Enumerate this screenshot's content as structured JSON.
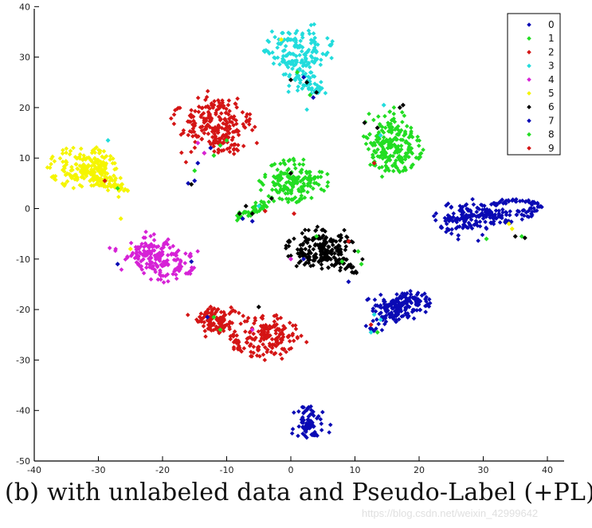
{
  "caption": "(b) with unlabeled data and Pseudo-Label (+PL)",
  "watermark": "https://blog.csdn.net/weixin_42999642",
  "chart_data": {
    "type": "scatter",
    "title": "",
    "xlabel": "",
    "ylabel": "",
    "xlim": [
      -40,
      43
    ],
    "ylim": [
      -50,
      40
    ],
    "xticks": [
      -40,
      -30,
      -20,
      -10,
      0,
      10,
      20,
      30,
      40
    ],
    "yticks": [
      -50,
      -40,
      -30,
      -20,
      -10,
      0,
      10,
      20,
      30,
      40
    ],
    "grid": false,
    "legend_position": "upper right",
    "legend": [
      {
        "label": "0",
        "color": "#0a0ab4"
      },
      {
        "label": "1",
        "color": "#22dd22"
      },
      {
        "label": "2",
        "color": "#d41515"
      },
      {
        "label": "3",
        "color": "#22dcdc"
      },
      {
        "label": "4",
        "color": "#d622d6"
      },
      {
        "label": "5",
        "color": "#f5f500"
      },
      {
        "label": "6",
        "color": "#000000"
      },
      {
        "label": "7",
        "color": "#0a0ab4"
      },
      {
        "label": "8",
        "color": "#22dd22"
      },
      {
        "label": "9",
        "color": "#d41515"
      }
    ],
    "clusters": [
      {
        "class": "3",
        "color": "#22dcdc",
        "ring": [
          1,
          32,
          3.0,
          1.6
        ],
        "center": [
          1.5,
          29
        ],
        "spread": [
          3.5,
          4.5
        ],
        "n": 170,
        "tail": [
          [
            0,
            27
          ],
          [
            5,
            23
          ]
        ],
        "tail_n": 40
      },
      {
        "class": "2",
        "color": "#d41515",
        "ring": [
          -12.5,
          18,
          3.2,
          2.2
        ],
        "center": [
          -12,
          16
        ],
        "spread": [
          4.0,
          4.5
        ],
        "n": 210,
        "tail": [
          [
            -12,
            13
          ],
          [
            -8,
            12
          ]
        ],
        "tail_n": 30
      },
      {
        "class": "8",
        "color": "#22dd22",
        "ring": [
          16.5,
          11.5,
          2.2,
          2.2
        ],
        "center": [
          15,
          13
        ],
        "spread": [
          2.8,
          5.0
        ],
        "n": 200,
        "tail": [
          [
            13,
            8
          ],
          [
            16,
            20
          ]
        ],
        "tail_n": 20
      },
      {
        "class": "5",
        "color": "#f5f500",
        "ring": [
          -32.5,
          8,
          2.8,
          2.2
        ],
        "center": [
          -31,
          7.5
        ],
        "spread": [
          3.2,
          2.4
        ],
        "n": 200,
        "tail": [
          [
            -30,
            6
          ],
          [
            -26,
            3.5
          ]
        ],
        "tail_n": 40
      },
      {
        "class": "1",
        "color": "#22dd22",
        "ring": [
          0.5,
          5.5,
          2.8,
          2.2
        ],
        "center": [
          0,
          5
        ],
        "spread": [
          3.2,
          2.4
        ],
        "n": 160,
        "tail": [
          [
            -3,
            2
          ],
          [
            -8,
            -2
          ]
        ],
        "tail_n": 50
      },
      {
        "class": "0",
        "color": "#0a0ab4",
        "ring": [
          27,
          -2,
          2.6,
          1.8
        ],
        "center": [
          27,
          -2.5
        ],
        "spread": [
          3.5,
          2.5
        ],
        "n": 110,
        "tail": [
          [
            29,
            -1
          ],
          [
            39,
            -1
          ]
        ],
        "tail_n": 60
      },
      {
        "class": "6",
        "color": "#000000",
        "ring": [
          4.5,
          -8,
          3.0,
          2.2
        ],
        "center": [
          5,
          -8.5
        ],
        "spread": [
          4.0,
          2.8
        ],
        "n": 190,
        "tail": [
          [
            7,
            -10
          ],
          [
            10,
            -12
          ]
        ],
        "tail_n": 30
      },
      {
        "class": "4",
        "color": "#d622d6",
        "ring": [
          -19.5,
          -11,
          2.3,
          2.0
        ],
        "center": [
          -22,
          -9
        ],
        "spread": [
          3.5,
          2.6
        ],
        "n": 170,
        "tail": [
          [
            -27,
            -9
          ],
          [
            -17,
            -12
          ]
        ],
        "tail_n": 20
      },
      {
        "class": "2",
        "color": "#d41515",
        "ring": [
          -4,
          -25.5,
          2.8,
          2.3
        ],
        "center": [
          -3.5,
          -25.5
        ],
        "spread": [
          3.0,
          2.8
        ],
        "n": 150,
        "tail": [
          [
            -2,
            -28
          ],
          [
            -4,
            -29
          ]
        ],
        "tail_n": 5
      },
      {
        "class": "2",
        "color": "#d41515",
        "ring": [
          -11,
          -22,
          1.8,
          1.2
        ],
        "center": [
          -11.5,
          -22.5
        ],
        "spread": [
          2.5,
          2.0
        ],
        "n": 110,
        "tail": [
          [
            -10,
            -24
          ],
          [
            -8,
            -27
          ]
        ],
        "tail_n": 12
      },
      {
        "class": "7",
        "color": "#0a0ab4",
        "ring": [
          18,
          -18.5,
          2.0,
          1.0
        ],
        "center": [
          16,
          -20
        ],
        "spread": [
          3.0,
          2.2
        ],
        "n": 140,
        "tail": [
          [
            12,
            -24
          ],
          [
            21,
            -17
          ]
        ],
        "tail_n": 40
      },
      {
        "class": "0",
        "color": "#0a0ab4",
        "ring": [
          3,
          -43,
          1.8,
          2.2
        ],
        "center": [
          3,
          -42.5
        ],
        "spread": [
          0.8,
          1.3
        ],
        "n": 40,
        "tail": [
          [
            2,
            -45
          ],
          [
            4,
            -40
          ]
        ],
        "tail_n": 10
      }
    ],
    "outliers": [
      {
        "x": -28.5,
        "y": 13.5,
        "color": "#22dcdc"
      },
      {
        "x": -26.5,
        "y": -2,
        "color": "#f5f500"
      },
      {
        "x": -29,
        "y": 5.5,
        "color": "#d41515"
      },
      {
        "x": -27,
        "y": 4,
        "color": "#22dd22"
      },
      {
        "x": -15.5,
        "y": -10.5,
        "color": "#0a0ab4"
      },
      {
        "x": -27,
        "y": -11,
        "color": "#0a0ab4"
      },
      {
        "x": -25,
        "y": -8,
        "color": "#f5f500"
      },
      {
        "x": -16,
        "y": 5,
        "color": "#0a0ab4"
      },
      {
        "x": -15,
        "y": 5.5,
        "color": "#0a0ab4"
      },
      {
        "x": -15.5,
        "y": 4.8,
        "color": "#000000"
      },
      {
        "x": -14.5,
        "y": 9,
        "color": "#0a0ab4"
      },
      {
        "x": -13.5,
        "y": 11,
        "color": "#d622d6"
      },
      {
        "x": -14.5,
        "y": 13,
        "color": "#d622d6"
      },
      {
        "x": -12,
        "y": 10.5,
        "color": "#22dd22"
      },
      {
        "x": -11,
        "y": 12.5,
        "color": "#22dd22"
      },
      {
        "x": -15,
        "y": 7.5,
        "color": "#22dd22"
      },
      {
        "x": -12.5,
        "y": 12,
        "color": "#0a0ab4"
      },
      {
        "x": -10,
        "y": 13.5,
        "color": "#22dd22"
      },
      {
        "x": 11.5,
        "y": 17,
        "color": "#000000"
      },
      {
        "x": 13.5,
        "y": 16,
        "color": "#000000"
      },
      {
        "x": 17,
        "y": 20,
        "color": "#000000"
      },
      {
        "x": 17.5,
        "y": 20.5,
        "color": "#000000"
      },
      {
        "x": 14.5,
        "y": 20.5,
        "color": "#22dcdc"
      },
      {
        "x": 14,
        "y": 14.5,
        "color": "#22dcdc"
      },
      {
        "x": 13,
        "y": 9,
        "color": "#d41515"
      },
      {
        "x": 0,
        "y": 25.5,
        "color": "#000000"
      },
      {
        "x": 2.5,
        "y": 25,
        "color": "#000000"
      },
      {
        "x": 4,
        "y": 23,
        "color": "#000000"
      },
      {
        "x": 2,
        "y": 26,
        "color": "#0a0ab4"
      },
      {
        "x": 3.5,
        "y": 22,
        "color": "#0a0ab4"
      },
      {
        "x": 1,
        "y": 27,
        "color": "#22dd22"
      },
      {
        "x": 3,
        "y": 22.5,
        "color": "#22dd22"
      },
      {
        "x": -1.5,
        "y": 33.5,
        "color": "#f5f500"
      },
      {
        "x": -8,
        "y": -1,
        "color": "#000000"
      },
      {
        "x": -7.5,
        "y": -2,
        "color": "#0a0ab4"
      },
      {
        "x": -6,
        "y": -1,
        "color": "#000000"
      },
      {
        "x": -6,
        "y": -2.5,
        "color": "#0a0ab4"
      },
      {
        "x": -7,
        "y": 0.5,
        "color": "#000000"
      },
      {
        "x": -5,
        "y": 0.5,
        "color": "#22dcdc"
      },
      {
        "x": -4,
        "y": -0.5,
        "color": "#d41515"
      },
      {
        "x": 0.5,
        "y": -1,
        "color": "#d41515"
      },
      {
        "x": -3,
        "y": 2,
        "color": "#000000"
      },
      {
        "x": 0,
        "y": 7,
        "color": "#000000"
      },
      {
        "x": 0,
        "y": -10,
        "color": "#d622d6"
      },
      {
        "x": 2,
        "y": -10,
        "color": "#0a0ab4"
      },
      {
        "x": 9,
        "y": -6.5,
        "color": "#d41515"
      },
      {
        "x": 10.5,
        "y": -8.5,
        "color": "#22dd22"
      },
      {
        "x": 11,
        "y": -11,
        "color": "#22dd22"
      },
      {
        "x": 8,
        "y": -10.5,
        "color": "#22dd22"
      },
      {
        "x": 9,
        "y": -14.5,
        "color": "#0a0ab4"
      },
      {
        "x": 4,
        "y": -5.5,
        "color": "#22dd22"
      },
      {
        "x": 34,
        "y": -3,
        "color": "#f5f500"
      },
      {
        "x": 34.5,
        "y": -4,
        "color": "#f5f500"
      },
      {
        "x": 35,
        "y": -5.5,
        "color": "#000000"
      },
      {
        "x": 36,
        "y": -5.5,
        "color": "#22dd22"
      },
      {
        "x": 36.5,
        "y": -5.8,
        "color": "#000000"
      },
      {
        "x": 30.5,
        "y": -6,
        "color": "#22dd22"
      },
      {
        "x": 12.5,
        "y": -23,
        "color": "#d41515"
      },
      {
        "x": 13,
        "y": -21,
        "color": "#22dcdc"
      },
      {
        "x": 14,
        "y": -22,
        "color": "#22dcdc"
      },
      {
        "x": 13.5,
        "y": -24.5,
        "color": "#22dd22"
      },
      {
        "x": 12.5,
        "y": -24.5,
        "color": "#22dcdc"
      },
      {
        "x": -5,
        "y": -19.5,
        "color": "#000000"
      },
      {
        "x": -13,
        "y": -21.5,
        "color": "#0a0ab4"
      },
      {
        "x": -12,
        "y": -21.5,
        "color": "#22dd22"
      },
      {
        "x": -11,
        "y": -24,
        "color": "#22dd22"
      },
      {
        "x": -6,
        "y": -24,
        "color": "#d622d6"
      },
      {
        "x": -12.5,
        "y": -19.5,
        "color": "#d41515"
      }
    ]
  }
}
